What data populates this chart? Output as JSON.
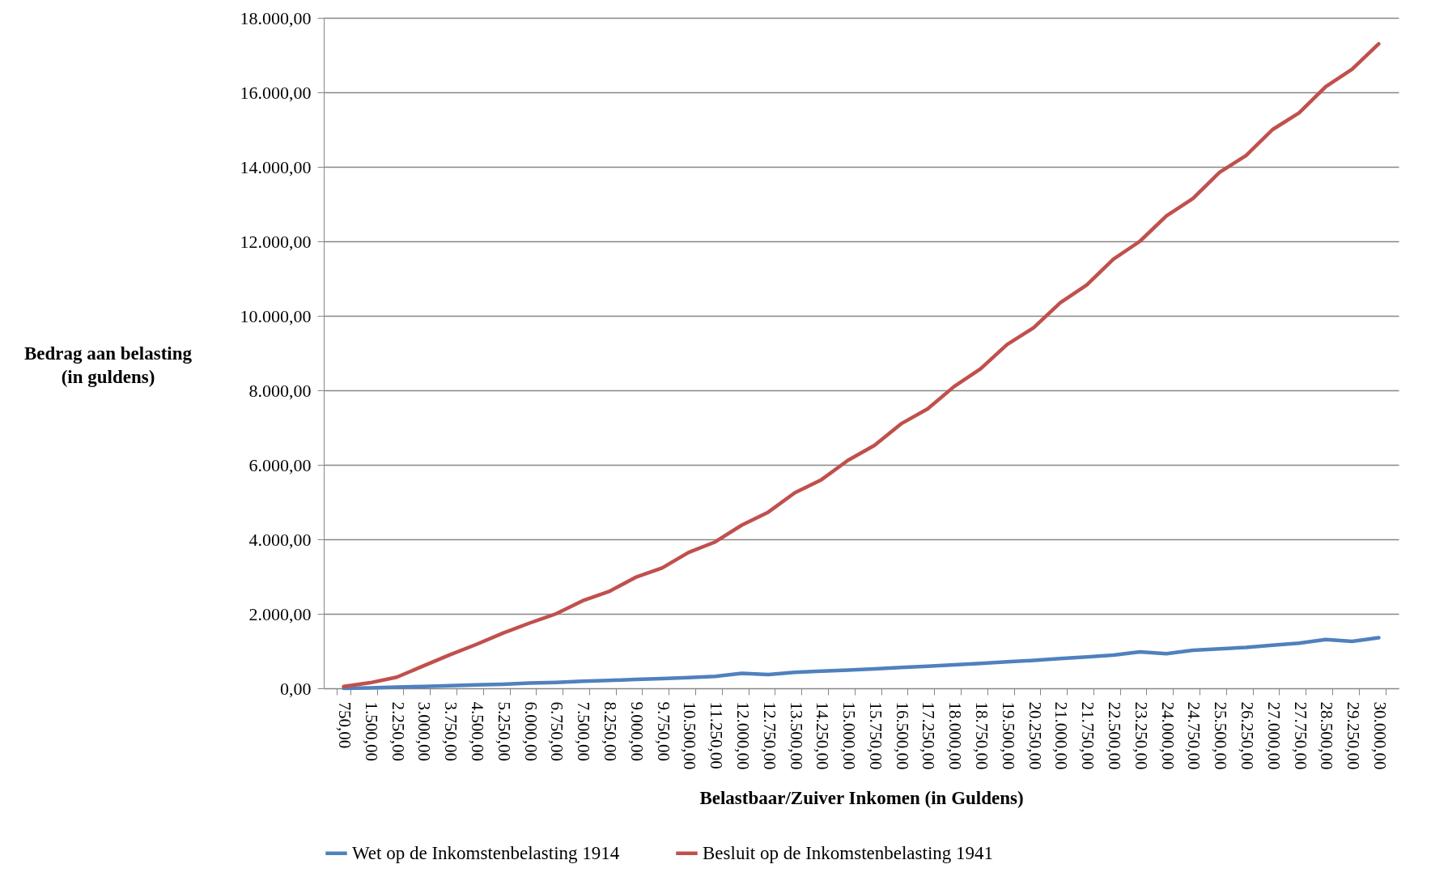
{
  "chart_data": {
    "type": "line",
    "xlabel": "Belastbaar/Zuiver Inkomen (in Guldens)",
    "ylabel": "Bedrag aan belasting\n(in guldens)",
    "categories": [
      "750,00",
      "1.500,00",
      "2.250,00",
      "3.000,00",
      "3.750,00",
      "4.500,00",
      "5.250,00",
      "6.000,00",
      "6.750,00",
      "7.500,00",
      "8.250,00",
      "9.000,00",
      "9.750,00",
      "10.500,00",
      "11.250,00",
      "12.000,00",
      "12.750,00",
      "13.500,00",
      "14.250,00",
      "15.000,00",
      "15.750,00",
      "16.500,00",
      "17.250,00",
      "18.000,00",
      "18.750,00",
      "19.500,00",
      "20.250,00",
      "21.000,00",
      "21.750,00",
      "22.500,00",
      "23.250,00",
      "24.000,00",
      "24.750,00",
      "25.500,00",
      "26.250,00",
      "27.000,00",
      "27.750,00",
      "28.500,00",
      "29.250,00",
      "30.000,00"
    ],
    "series": [
      {
        "name": "Wet op de Inkomstenbelasting 1914",
        "color": "#4f81bd",
        "values": [
          0,
          10,
          30,
          50,
          70,
          90,
          110,
          140,
          160,
          190,
          210,
          240,
          260,
          290,
          320,
          400,
          370,
          430,
          460,
          490,
          520,
          560,
          590,
          630,
          670,
          710,
          750,
          800,
          840,
          890,
          980,
          930,
          1020,
          1060,
          1100,
          1160,
          1210,
          1310,
          1260,
          1360
        ]
      },
      {
        "name": "Besluit op de Inkomstenbelasting 1941",
        "color": "#c0504d",
        "values": [
          50,
          150,
          300,
          600,
          900,
          1180,
          1480,
          1750,
          2000,
          2350,
          2600,
          2980,
          3230,
          3650,
          3930,
          4380,
          4730,
          5250,
          5600,
          6120,
          6520,
          7100,
          7500,
          8100,
          8580,
          9230,
          9680,
          10350,
          10830,
          11520,
          12000,
          12680,
          13150,
          13850,
          14300,
          15000,
          15450,
          16150,
          16620,
          17300
        ]
      }
    ],
    "ylim": [
      0,
      18000
    ],
    "yticks": [
      {
        "value": 0,
        "label": "0,00"
      },
      {
        "value": 2000,
        "label": "2.000,00"
      },
      {
        "value": 4000,
        "label": "4.000,00"
      },
      {
        "value": 6000,
        "label": "6.000,00"
      },
      {
        "value": 8000,
        "label": "8.000,00"
      },
      {
        "value": 10000,
        "label": "10.000,00"
      },
      {
        "value": 12000,
        "label": "12.000,00"
      },
      {
        "value": 14000,
        "label": "14.000,00"
      },
      {
        "value": 16000,
        "label": "16.000,00"
      },
      {
        "value": 18000,
        "label": "18.000,00"
      }
    ],
    "grid": "y",
    "legend": "bottom",
    "marker": "none",
    "line_style": "solid"
  }
}
